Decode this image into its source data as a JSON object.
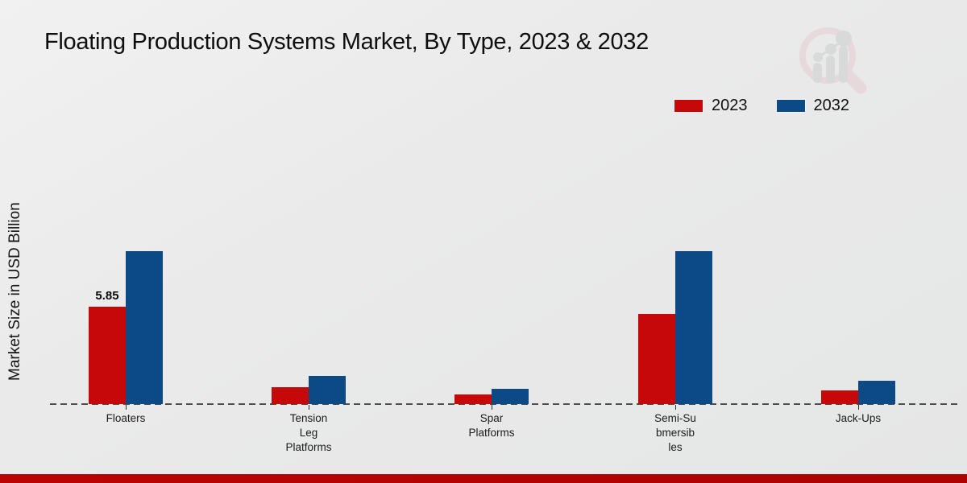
{
  "header": {
    "title": "Floating Production Systems Market, By Type, 2023 & 2032",
    "logo_name": "market-research-magnifier-logo"
  },
  "legend": [
    {
      "label": "2023",
      "color": "#c50808"
    },
    {
      "label": "2032",
      "color": "#0b4a84"
    }
  ],
  "y_axis_label": "Market Size in USD Billion",
  "footer": {
    "stripe_color": "#b30303"
  },
  "chart_data": {
    "type": "bar",
    "title": "Floating Production Systems Market, By Type, 2023 & 2032",
    "xlabel": "",
    "ylabel": "Market Size in USD Billion",
    "unit": "USD Billion",
    "categories": [
      "Floaters",
      "Tension Leg Platforms",
      "Spar Platforms",
      "Semi-Submersibles",
      "Jack-Ups"
    ],
    "categories_display": [
      [
        "Floaters"
      ],
      [
        "Tension",
        "Leg",
        "Platforms"
      ],
      [
        "Spar",
        "Platforms"
      ],
      [
        "Semi-Su",
        "bmersib",
        "les"
      ],
      [
        "Jack-Ups"
      ]
    ],
    "series": [
      {
        "name": "2023",
        "color": "#c50808",
        "values": [
          5.85,
          1.0,
          0.6,
          5.4,
          0.8
        ]
      },
      {
        "name": "2032",
        "color": "#0b4a84",
        "values": [
          9.2,
          1.7,
          0.9,
          9.2,
          1.4
        ]
      }
    ],
    "annotations": [
      {
        "series": "2023",
        "category": "Floaters",
        "text": "5.85"
      }
    ],
    "ylim": [
      0,
      10
    ],
    "grid": false,
    "axis_style": "dashed-zero-baseline",
    "legend_position": "top-right"
  }
}
